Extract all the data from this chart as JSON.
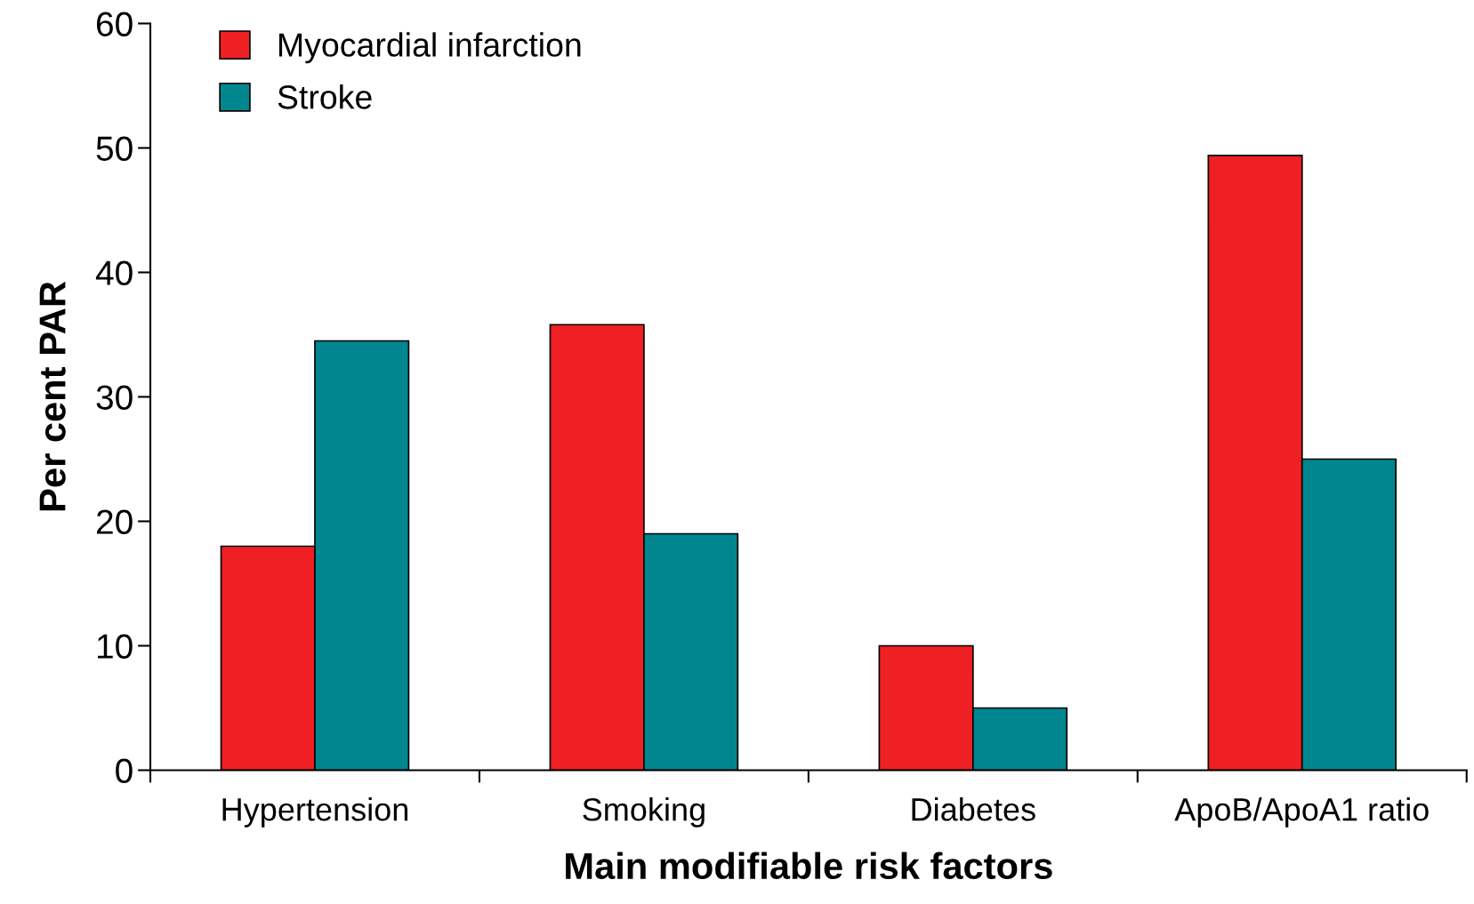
{
  "chart_data": {
    "type": "bar",
    "xlabel": "Main modifiable risk factors",
    "ylabel": "Per cent PAR",
    "categories": [
      "Hypertension",
      "Smoking",
      "Diabetes",
      "ApoB/ApoA1 ratio"
    ],
    "series": [
      {
        "name": "Myocardial infarction",
        "color": "#ee2024",
        "values": [
          18,
          35.8,
          10,
          49.4
        ]
      },
      {
        "name": "Stroke",
        "color": "#00868f",
        "values": [
          34.5,
          19,
          5,
          25
        ]
      }
    ],
    "ylim": [
      0,
      60
    ],
    "yticks": [
      0,
      10,
      20,
      30,
      40,
      50,
      60
    ],
    "grid": false,
    "legend": "top left"
  }
}
